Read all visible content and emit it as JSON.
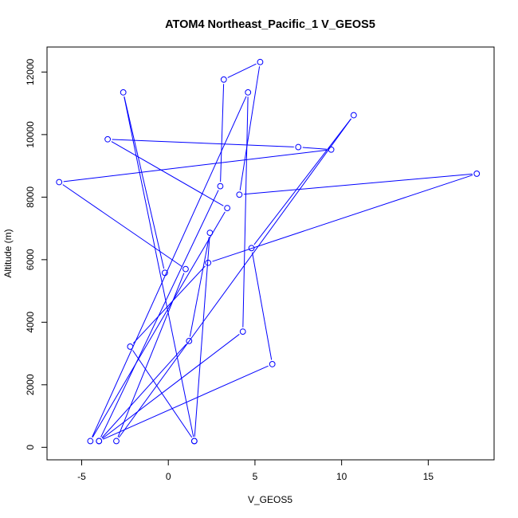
{
  "chart_data": {
    "type": "line",
    "title": "ATOM4 Northeast_Pacific_1 V_GEOS5",
    "xlabel": "V_GEOS5",
    "ylabel": "Altitude (m)",
    "xlim": [
      -7.0,
      18.8
    ],
    "ylim": [
      -400,
      12800
    ],
    "xticks": [
      -5,
      0,
      5,
      10,
      15
    ],
    "yticks": [
      0,
      2000,
      4000,
      6000,
      8000,
      10000,
      12000
    ],
    "grid": false,
    "legend": "none",
    "series": [
      {
        "color": "#0000ff",
        "marker": "open-circle",
        "points": [
          {
            "x": 1.5,
            "y": 200
          },
          {
            "x": -2.2,
            "y": 3220
          },
          {
            "x": 2.3,
            "y": 5900
          },
          {
            "x": 17.8,
            "y": 8750
          },
          {
            "x": 4.1,
            "y": 8080
          },
          {
            "x": 5.3,
            "y": 12320
          },
          {
            "x": 3.2,
            "y": 11760
          },
          {
            "x": 3.0,
            "y": 8350
          },
          {
            "x": -4.0,
            "y": 200
          },
          {
            "x": 4.3,
            "y": 3700
          },
          {
            "x": 4.6,
            "y": 11350
          },
          {
            "x": -4.5,
            "y": 200
          },
          {
            "x": 3.4,
            "y": 7650
          },
          {
            "x": -3.5,
            "y": 9850
          },
          {
            "x": 7.5,
            "y": 9600
          },
          {
            "x": 9.4,
            "y": 9520
          },
          {
            "x": -6.3,
            "y": 8480
          },
          {
            "x": 1.0,
            "y": 5700
          },
          {
            "x": -3.0,
            "y": 200
          },
          {
            "x": 10.7,
            "y": 10620
          },
          {
            "x": 4.8,
            "y": 6370
          },
          {
            "x": 6.0,
            "y": 2660
          },
          {
            "x": -4.0,
            "y": 200
          },
          {
            "x": 1.2,
            "y": 3400
          },
          {
            "x": 2.4,
            "y": 6860
          },
          {
            "x": 1.5,
            "y": 200
          },
          {
            "x": -2.6,
            "y": 11350
          },
          {
            "x": -0.2,
            "y": 5580
          }
        ]
      }
    ]
  }
}
